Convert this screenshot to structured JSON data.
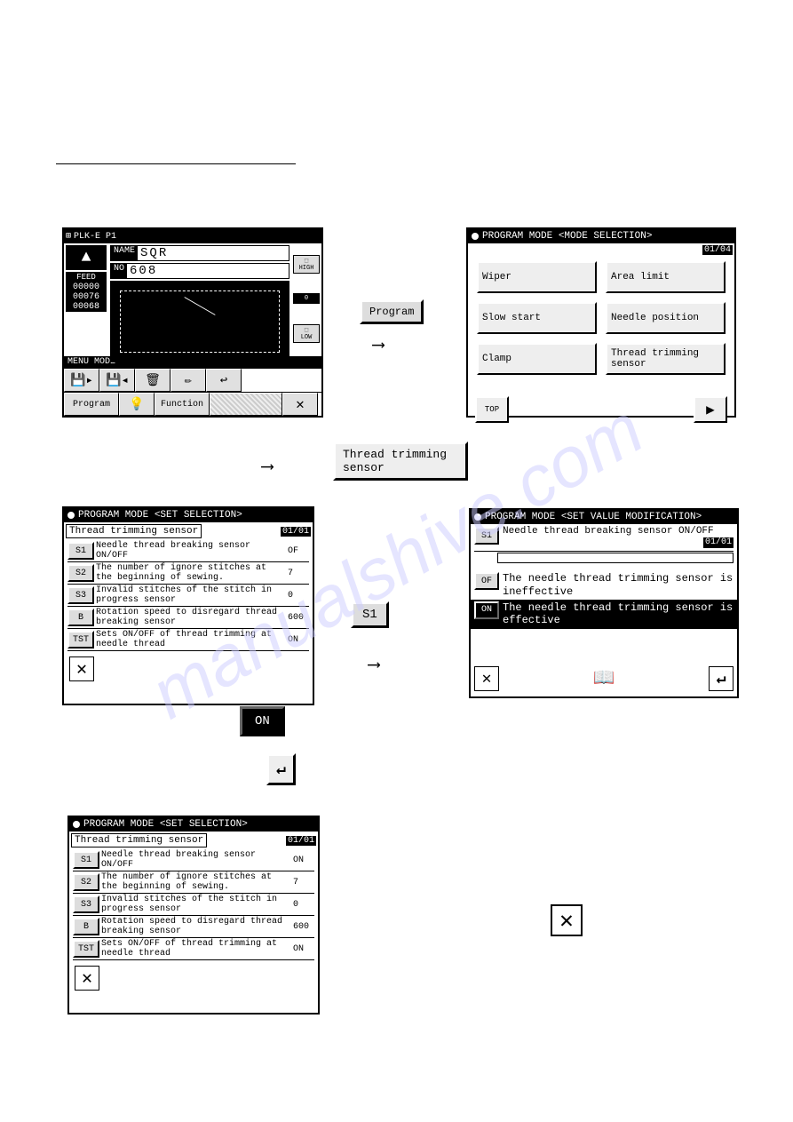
{
  "watermark": "manualshive.com",
  "screen1": {
    "title": "PLK-E P1",
    "name_label": "NAME",
    "name_value": "SQR",
    "no_label": "NO",
    "no_value": "608",
    "up_arrow": "▲",
    "feed_label": "FEED",
    "counters": [
      "00000",
      "00076",
      "00068"
    ],
    "right_labels": [
      "HIGH",
      "0",
      "LOW"
    ],
    "menu_label": "MENU MODE",
    "btn_program": "Program",
    "btn_function": "Function"
  },
  "prog_button": "Program",
  "screen2": {
    "title": "PROGRAM MODE <MODE SELECTION>",
    "page": "01/04",
    "options": [
      "Wiper",
      "Area limit",
      "Slow start",
      "Needle position",
      "Clamp",
      "Thread trimming sensor"
    ],
    "top_btn": "TOP",
    "play": "▶"
  },
  "tts_button": "Thread trimming sensor",
  "screen3": {
    "title": "PROGRAM MODE <SET SELECTION>",
    "subtitle": "Thread trimming sensor",
    "page": "01/01",
    "rows": [
      {
        "code": "S1",
        "text": "Needle thread breaking sensor ON/OFF",
        "val": "OF"
      },
      {
        "code": "S2",
        "text": "The number of ignore stitches at the beginning of sewing.",
        "val": "7"
      },
      {
        "code": "S3",
        "text": "Invalid stitches of the stitch in progress sensor",
        "val": "0"
      },
      {
        "code": "B",
        "text": "Rotation speed to disregard thread breaking sensor",
        "val": "600"
      },
      {
        "code": "TST",
        "text": "Sets ON/OFF of thread trimming at needle thread",
        "val": "ON"
      }
    ]
  },
  "s1_button": "S1",
  "screen4": {
    "title": "PROGRAM MODE <SET VALUE MODIFICATION>",
    "code": "S1",
    "header_text": "Needle thread breaking sensor ON/OFF",
    "page": "01/01",
    "options": [
      {
        "code": "OF",
        "text": "The needle thread trimming sensor is ineffective",
        "selected": false
      },
      {
        "code": "ON",
        "text": "The needle thread trimming sensor is effective",
        "selected": true
      }
    ]
  },
  "on_button": "ON",
  "enter_glyph": "↵",
  "screen5": {
    "title": "PROGRAM MODE <SET SELECTION>",
    "subtitle": "Thread trimming sensor",
    "page": "01/01",
    "rows": [
      {
        "code": "S1",
        "text": "Needle thread breaking sensor ON/OFF",
        "val": "ON"
      },
      {
        "code": "S2",
        "text": "The number of ignore stitches at the beginning of sewing.",
        "val": "7"
      },
      {
        "code": "S3",
        "text": "Invalid stitches of the stitch in progress sensor",
        "val": "0"
      },
      {
        "code": "B",
        "text": "Rotation speed to disregard thread breaking sensor",
        "val": "600"
      },
      {
        "code": "TST",
        "text": "Sets ON/OFF of thread trimming at needle thread",
        "val": "ON"
      }
    ]
  },
  "x_glyph": "✕",
  "book_glyph": "📖"
}
